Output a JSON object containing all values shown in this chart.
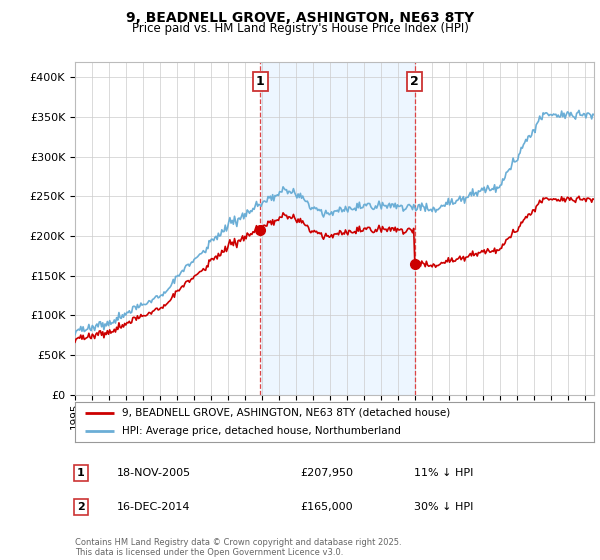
{
  "title": "9, BEADNELL GROVE, ASHINGTON, NE63 8TY",
  "subtitle": "Price paid vs. HM Land Registry's House Price Index (HPI)",
  "ylim": [
    0,
    420000
  ],
  "yticks": [
    0,
    50000,
    100000,
    150000,
    200000,
    250000,
    300000,
    350000,
    400000
  ],
  "red_color": "#cc0000",
  "blue_color": "#6baed6",
  "blue_fill": "#ddeeff",
  "vline_color": "#dd4444",
  "background_color": "#ffffff",
  "purchase1_date": 2005.88,
  "purchase1_price": 207950,
  "purchase2_date": 2014.96,
  "purchase2_price": 165000,
  "legend_red": "9, BEADNELL GROVE, ASHINGTON, NE63 8TY (detached house)",
  "legend_blue": "HPI: Average price, detached house, Northumberland",
  "annotation1_date": "18-NOV-2005",
  "annotation1_price": "£207,950",
  "annotation1_pct": "11% ↓ HPI",
  "annotation2_date": "16-DEC-2014",
  "annotation2_price": "£165,000",
  "annotation2_pct": "30% ↓ HPI",
  "footer": "Contains HM Land Registry data © Crown copyright and database right 2025.\nThis data is licensed under the Open Government Licence v3.0.",
  "xmin": 1995,
  "xmax": 2025.5
}
